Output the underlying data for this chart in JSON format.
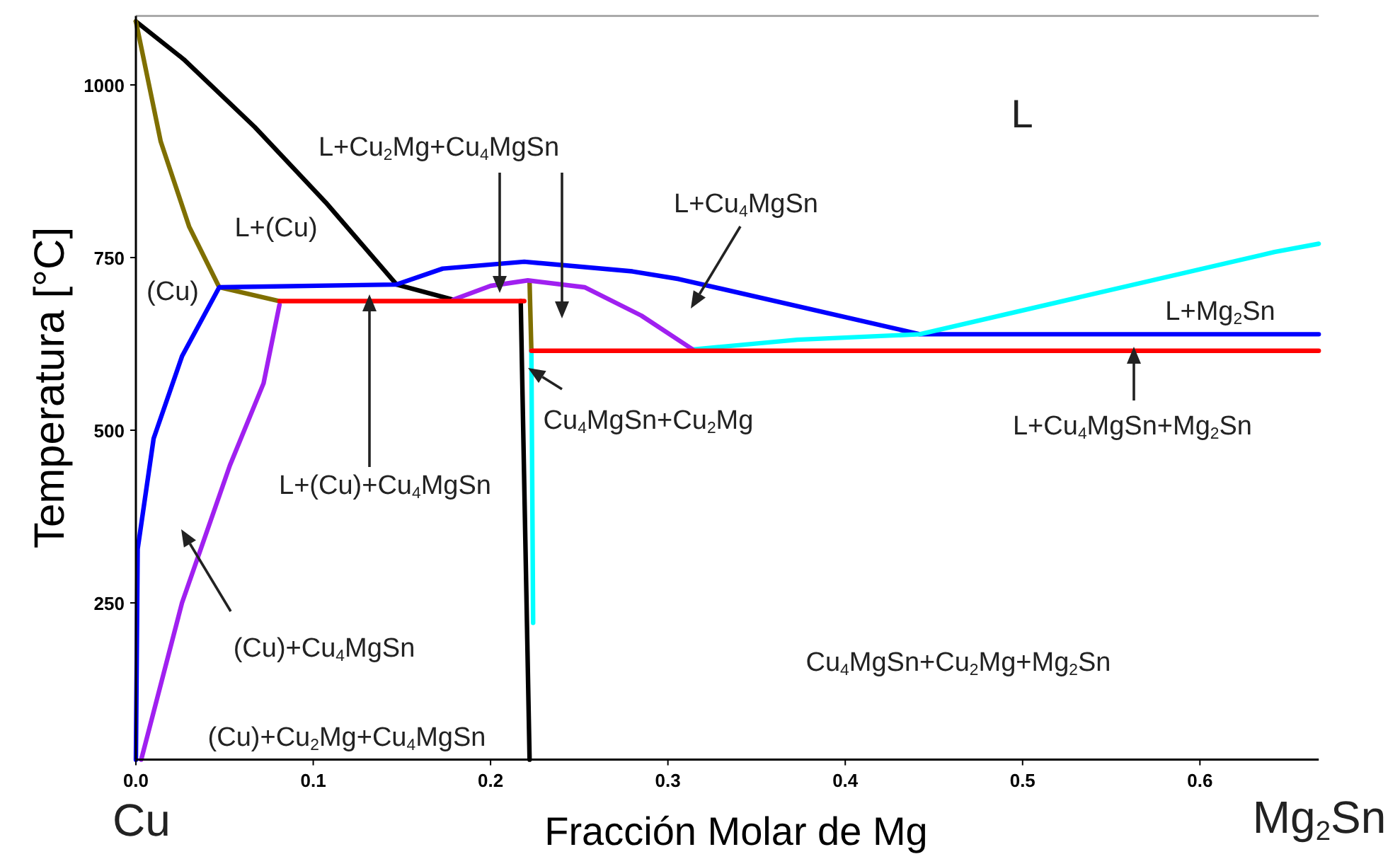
{
  "chart_data": {
    "type": "line",
    "xlabel": "Fracción Molar de Mg",
    "ylabel": "Temperatura [°C]",
    "xlim": [
      0,
      0.667
    ],
    "ylim": [
      23,
      1100
    ],
    "xticks": [
      {
        "value": 0,
        "label": "0.0"
      },
      0.1,
      0.2,
      0.3,
      0.4,
      0.5,
      0.6
    ],
    "yticks": [
      250,
      500,
      750,
      1000
    ],
    "grid": false,
    "marker": "none",
    "line_style": "solid",
    "series": [
      {
        "color": "#000000",
        "x": [
          0,
          0.027,
          0.067,
          0.107,
          0.147,
          0.179
        ],
        "values": [
          1092,
          1037,
          939,
          830,
          711,
          689
        ]
      },
      {
        "color": "#7f6f00",
        "x": [
          0,
          0.014,
          0.03,
          0.047,
          0.081
        ],
        "values": [
          1092,
          918,
          795,
          707,
          687
        ]
      },
      {
        "color": "#7f6f00",
        "x": [
          0.222,
          0.223
        ],
        "values": [
          714,
          615
        ]
      },
      {
        "color": "#0000ff",
        "x": [
          0,
          0.001,
          0.01,
          0.026,
          0.047,
          0.147,
          0.173,
          0.219,
          0.28,
          0.306,
          0.442,
          0.667
        ],
        "values": [
          23,
          328,
          488,
          607,
          707,
          711,
          734,
          744,
          730,
          719,
          639,
          639
        ]
      },
      {
        "color": "#00ffff",
        "x": [
          0.314,
          0.373,
          0.442,
          0.642,
          0.667
        ],
        "values": [
          617,
          631,
          639,
          758,
          770
        ]
      },
      {
        "color": "#00ffff",
        "x": [
          0.223,
          0.224
        ],
        "values": [
          615,
          221
        ]
      },
      {
        "color": "#a020f0",
        "x": [
          0.003,
          0.026,
          0.053,
          0.072,
          0.081
        ],
        "values": [
          23,
          250,
          449,
          568,
          682
        ]
      },
      {
        "color": "#a020f0",
        "x": [
          0.179,
          0.2,
          0.221,
          0.253,
          0.285,
          0.314
        ],
        "values": [
          689,
          709,
          717,
          707,
          666,
          617
        ]
      },
      {
        "color": "#000000",
        "x": [
          0.217,
          0.222
        ],
        "values": [
          687,
          23
        ]
      },
      {
        "color": "#ff0000",
        "x": [
          0.081,
          0.219
        ],
        "values": [
          687,
          687
        ]
      },
      {
        "color": "#ff0000",
        "x": [
          0.223,
          0.667
        ],
        "values": [
          615,
          615
        ]
      }
    ],
    "annotations": [
      "L",
      "L+(Cu)",
      "(Cu)",
      "L+Cu$_{2}$Mg+Cu$_{4}$MgSn",
      "L+Cu$_{4}$MgSn",
      "L+Mg$_{2}$Sn",
      "L+(Cu)+Cu$_{4}$MgSn",
      "Cu$_{4}$MgSn+Cu$_{2}$Mg",
      "L+Cu$_{4}$MgSn+Mg$_{2}$Sn",
      "(Cu)+Cu$_{4}$MgSn",
      "(Cu)+Cu$_{2}$Mg+Cu$_{4}$MgSn",
      "Cu$_{4}$MgSn+Cu$_{2}$Mg+Mg$_{2}$Sn",
      "Cu",
      "Mg$_{2}$Sn"
    ]
  }
}
